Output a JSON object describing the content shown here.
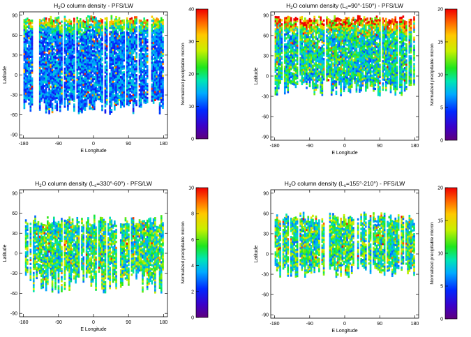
{
  "chart_data": [
    {
      "type": "heatmap",
      "title_pre": "H",
      "title_sub": "2",
      "title_post": "O column density - PFS/LW",
      "xlabel": "E Longitude",
      "ylabel": "Latitude",
      "xlim": [
        -190,
        190
      ],
      "ylim": [
        -95,
        95
      ],
      "xticks": [
        -180,
        -90,
        0,
        90,
        180
      ],
      "yticks": [
        90,
        60,
        30,
        0,
        -30,
        -60,
        -90
      ],
      "colorbar": {
        "label": "Normalized precipitable micron",
        "min": 0,
        "max": 40,
        "ticks": [
          0,
          10,
          20,
          30,
          40
        ]
      },
      "coverage": {
        "lat_top": [
          80,
          88
        ],
        "lat_bottom": [
          -35,
          -60
        ],
        "typical_value": 12,
        "north_value": 30
      }
    },
    {
      "type": "heatmap",
      "title_pre": "H",
      "title_sub": "2",
      "title_post": "O column density (L",
      "title_s_sub": "s",
      "title_post2": "=90°-150°) - PFS/LW",
      "xlabel": "E Longitude",
      "ylabel": "Latitude",
      "xlim": [
        -190,
        190
      ],
      "ylim": [
        -95,
        95
      ],
      "xticks": [
        -180,
        -90,
        0,
        90,
        180
      ],
      "yticks": [
        90,
        60,
        30,
        0,
        -30,
        -60,
        -90
      ],
      "colorbar": {
        "label": "Normalized precipitable micron",
        "min": 0,
        "max": 20,
        "ticks": [
          0,
          5,
          10,
          15,
          20
        ]
      },
      "coverage": {
        "lat_top": [
          80,
          88
        ],
        "lat_bottom": [
          -5,
          -30
        ],
        "typical_value": 9,
        "north_value": 20
      }
    },
    {
      "type": "heatmap",
      "title_pre": "H",
      "title_sub": "2",
      "title_post": "O column density (L",
      "title_s_sub": "s",
      "title_post2": "=330°-60°) - PFS/LW",
      "xlabel": "E Longitude",
      "ylabel": "Latitude",
      "xlim": [
        -190,
        190
      ],
      "ylim": [
        -95,
        95
      ],
      "xticks": [
        -180,
        -90,
        0,
        90,
        180
      ],
      "yticks": [
        90,
        60,
        30,
        0,
        -30,
        -60,
        -90
      ],
      "colorbar": {
        "label": "Normalized precipitable micron",
        "min": 0,
        "max": 10,
        "ticks": [
          0,
          2,
          4,
          6,
          8,
          10
        ]
      },
      "coverage": {
        "lat_top": [
          40,
          55
        ],
        "lat_bottom": [
          -20,
          -60
        ],
        "typical_value": 5,
        "north_value": 5
      }
    },
    {
      "type": "heatmap",
      "title_pre": "H",
      "title_sub": "2",
      "title_post": "O column density (L",
      "title_s_sub": "s",
      "title_post2": "=155°-210°) - PFS/LW",
      "xlabel": "E Longitude",
      "ylabel": "Latitude",
      "xlim": [
        -190,
        190
      ],
      "ylim": [
        -95,
        95
      ],
      "xticks": [
        -180,
        -90,
        0,
        90,
        180
      ],
      "yticks": [
        90,
        60,
        30,
        0,
        -30,
        -60,
        -90
      ],
      "colorbar": {
        "label": "Normalized precipitable micron",
        "min": 0,
        "max": 20,
        "ticks": [
          0,
          5,
          10,
          15,
          20
        ]
      },
      "coverage": {
        "lat_top": [
          45,
          60
        ],
        "lat_bottom": [
          -15,
          -35
        ],
        "typical_value": 10,
        "north_value": 10
      }
    }
  ]
}
